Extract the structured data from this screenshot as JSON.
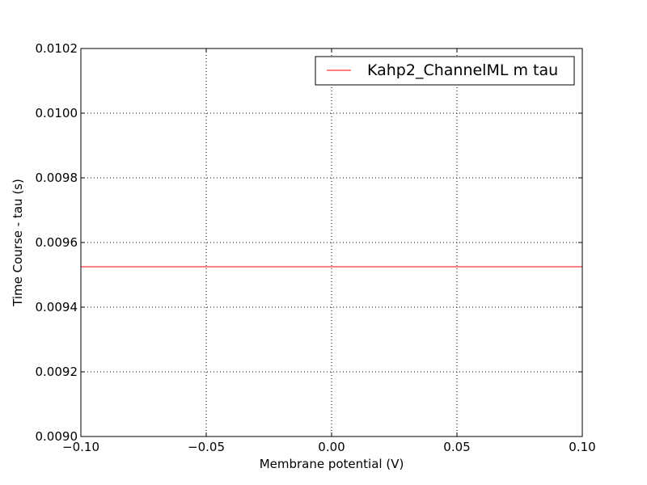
{
  "chart_data": {
    "type": "line",
    "title": "",
    "xlabel": "Membrane potential (V)",
    "ylabel": "Time Course - tau (s)",
    "xlim": [
      -0.1,
      0.1
    ],
    "ylim": [
      0.009,
      0.0102
    ],
    "x_ticks": [
      -0.1,
      -0.05,
      0.0,
      0.05,
      0.1
    ],
    "x_tick_labels": [
      "−0.10",
      "−0.05",
      "0.00",
      "0.05",
      "0.10"
    ],
    "y_ticks": [
      0.009,
      0.0092,
      0.0094,
      0.0096,
      0.0098,
      0.01,
      0.0102
    ],
    "y_tick_labels": [
      "0.0090",
      "0.0092",
      "0.0094",
      "0.0096",
      "0.0098",
      "0.0100",
      "0.0102"
    ],
    "grid": true,
    "legend_position": "top-right",
    "series": [
      {
        "name": "Kahp2_ChannelML m tau",
        "color": "#ff0000",
        "x": [
          -0.1,
          0.1
        ],
        "y": [
          0.009525,
          0.009525
        ]
      }
    ]
  }
}
